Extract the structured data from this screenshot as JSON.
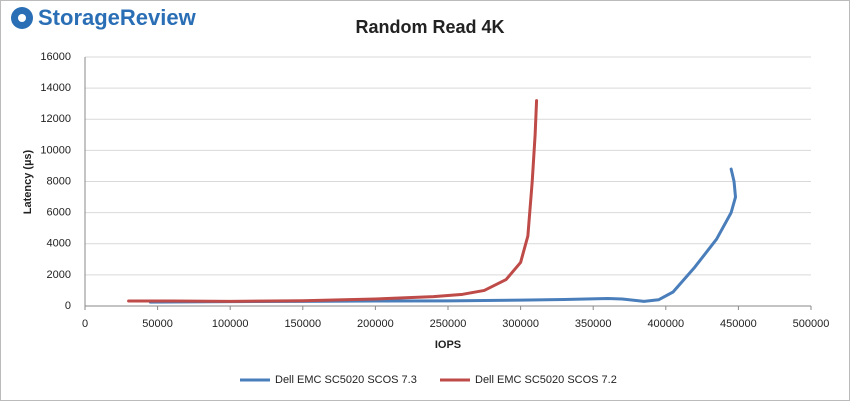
{
  "logo": "StorageReview",
  "chart_data": {
    "type": "line",
    "title": "Random Read 4K",
    "x_label": "IOPS",
    "y_label": "Latency (µs)",
    "xlim": [
      0,
      500000
    ],
    "xticks": [
      0,
      50000,
      100000,
      150000,
      200000,
      250000,
      300000,
      350000,
      400000,
      450000,
      500000
    ],
    "ylim": [
      0,
      16000
    ],
    "yticks": [
      0,
      2000,
      4000,
      6000,
      8000,
      10000,
      12000,
      14000,
      16000
    ],
    "grid": true,
    "legend": "bottom",
    "series": [
      {
        "name": "Dell EMC SC5020 SCOS 7.3",
        "color": "#4a7ebb",
        "x": [
          45000,
          100000,
          150000,
          200000,
          250000,
          300000,
          330000,
          360000,
          370000,
          385000,
          395000,
          405000,
          420000,
          435000,
          445000,
          448000,
          447000,
          445000
        ],
        "values": [
          250,
          280,
          300,
          320,
          330,
          380,
          420,
          480,
          450,
          300,
          400,
          900,
          2500,
          4300,
          6000,
          7000,
          8000,
          8800
        ]
      },
      {
        "name": "Dell EMC SC5020 SCOS 7.2",
        "color": "#be4b48",
        "x": [
          30000,
          60000,
          100000,
          150000,
          200000,
          240000,
          260000,
          275000,
          290000,
          300000,
          305000,
          308000,
          310000,
          311000
        ],
        "values": [
          320,
          320,
          300,
          340,
          450,
          600,
          750,
          1000,
          1700,
          2800,
          4500,
          8000,
          11000,
          13200
        ]
      }
    ]
  }
}
